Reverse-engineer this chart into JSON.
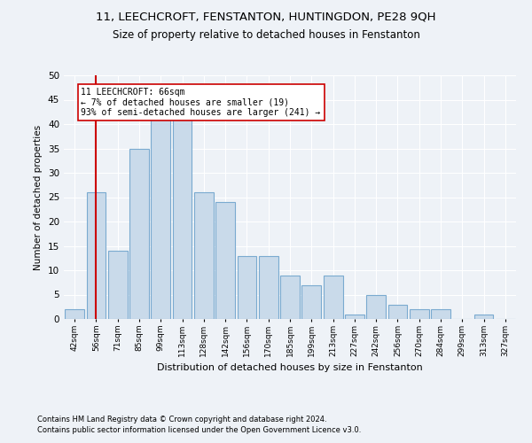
{
  "title_line1": "11, LEECHCROFT, FENSTANTON, HUNTINGDON, PE28 9QH",
  "title_line2": "Size of property relative to detached houses in Fenstanton",
  "xlabel": "Distribution of detached houses by size in Fenstanton",
  "ylabel": "Number of detached properties",
  "bar_color": "#c9daea",
  "bar_edge_color": "#7aaad0",
  "highlight_color": "#cc0000",
  "annotation_text": "11 LEECHCROFT: 66sqm\n← 7% of detached houses are smaller (19)\n93% of semi-detached houses are larger (241) →",
  "annotation_box_color": "#ffffff",
  "annotation_box_edge": "#cc0000",
  "categories": [
    "42sqm",
    "56sqm",
    "71sqm",
    "85sqm",
    "99sqm",
    "113sqm",
    "128sqm",
    "142sqm",
    "156sqm",
    "170sqm",
    "185sqm",
    "199sqm",
    "213sqm",
    "227sqm",
    "242sqm",
    "256sqm",
    "270sqm",
    "284sqm",
    "299sqm",
    "313sqm",
    "327sqm"
  ],
  "values": [
    2,
    26,
    14,
    35,
    41,
    41,
    26,
    24,
    13,
    13,
    9,
    7,
    9,
    1,
    5,
    3,
    2,
    2,
    0,
    1,
    0
  ],
  "ylim": [
    0,
    50
  ],
  "yticks": [
    0,
    5,
    10,
    15,
    20,
    25,
    30,
    35,
    40,
    45,
    50
  ],
  "footer_line1": "Contains HM Land Registry data © Crown copyright and database right 2024.",
  "footer_line2": "Contains public sector information licensed under the Open Government Licence v3.0.",
  "bg_color": "#eef2f7",
  "plot_bg_color": "#eef2f7",
  "grid_color": "#ffffff"
}
